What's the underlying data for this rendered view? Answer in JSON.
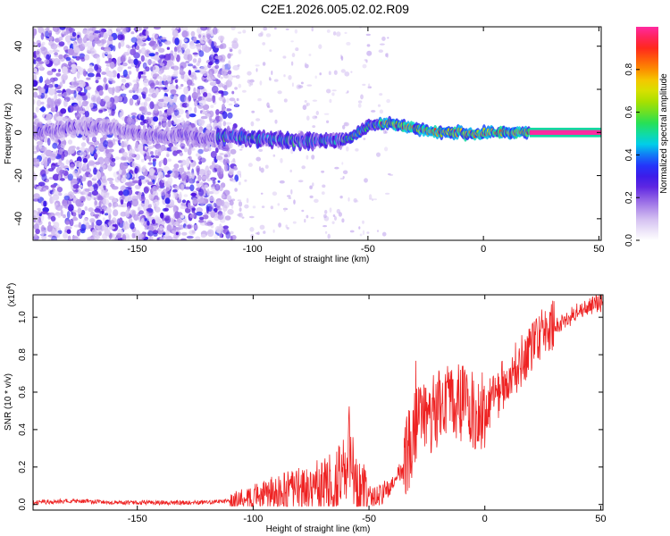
{
  "title": "C2E1.2026.005.02.02.R09",
  "chart_data": [
    {
      "type": "heatmap",
      "xlabel": "Height of straight line (km)",
      "ylabel": "Frequency (Hz)",
      "xlim": [
        -195,
        51
      ],
      "ylim": [
        -50,
        49
      ],
      "xticks": [
        -150,
        -100,
        -50,
        0,
        50
      ],
      "xtick_labels": [
        "-150",
        "-100",
        "-50",
        "0",
        "50"
      ],
      "yticks": [
        -40,
        -20,
        0,
        20,
        40
      ],
      "ytick_labels": [
        "-40",
        "-20",
        "0",
        "20",
        "40"
      ],
      "colorbar": {
        "label": "Normalized spectral amplitude",
        "range": [
          0,
          1
        ],
        "ticks": [
          0.0,
          0.2,
          0.4,
          0.6,
          0.8
        ],
        "tick_labels": [
          "0.0",
          "0.2",
          "0.4",
          "0.6",
          "0.8"
        ]
      },
      "ridge": {
        "x": [
          -195,
          -185,
          -175,
          -160,
          -150,
          -140,
          -130,
          -120,
          -110,
          -100,
          -90,
          -80,
          -70,
          -60,
          -55,
          -50,
          -45,
          -40,
          -35,
          -30,
          -25,
          -20,
          -15,
          -10,
          -5,
          0,
          5,
          10,
          20,
          30,
          40,
          51
        ],
        "freq": [
          0,
          1,
          3,
          2,
          -1,
          -2,
          -1,
          -3,
          -1,
          -3,
          -3,
          -4,
          -4,
          -3,
          -1,
          3,
          4,
          4,
          3,
          2,
          1,
          0,
          0,
          0,
          -1,
          0,
          0,
          0,
          0,
          0,
          0,
          0
        ]
      },
      "strong_band_start_km": 20
    },
    {
      "type": "line",
      "xlabel": "Height of straight line (km)",
      "ylabel": "SNR (10 * v/v)",
      "scale_label": "(x10",
      "scale_exponent": "4",
      "xlim": [
        -195,
        51
      ],
      "ylim": [
        -0.03,
        1.12
      ],
      "xticks": [
        -150,
        -100,
        -50,
        0,
        50
      ],
      "xtick_labels": [
        "-150",
        "-100",
        "-50",
        "0",
        "50"
      ],
      "yticks": [
        0.0,
        0.2,
        0.4,
        0.6,
        0.8,
        1.0
      ],
      "ytick_labels": [
        "0.0",
        "0.2",
        "0.4",
        "0.6",
        "0.8",
        "1.0"
      ],
      "series": [
        {
          "name": "SNR",
          "color": "#ee2222",
          "x": [
            -195,
            -180,
            -160,
            -140,
            -120,
            -110,
            -100,
            -90,
            -80,
            -70,
            -65,
            -60,
            -57,
            -55,
            -50,
            -45,
            -40,
            -35,
            -30,
            -28,
            -25,
            -20,
            -15,
            -10,
            -5,
            0,
            5,
            10,
            15,
            20,
            25,
            30,
            35,
            40,
            45,
            51
          ],
          "values": [
            0.01,
            0.02,
            0.01,
            0.01,
            0.01,
            0.02,
            0.04,
            0.06,
            0.07,
            0.09,
            0.12,
            0.2,
            0.15,
            0.06,
            0.04,
            0.05,
            0.1,
            0.2,
            0.4,
            0.52,
            0.45,
            0.5,
            0.55,
            0.55,
            0.5,
            0.52,
            0.58,
            0.68,
            0.75,
            0.84,
            0.92,
            0.96,
            0.98,
            1.03,
            1.06,
            1.08
          ]
        }
      ]
    }
  ],
  "colors": {
    "axis": "#000000",
    "snr_line": "#ee2222",
    "colormap": [
      "#ffffff",
      "#d9c8f2",
      "#9b6de6",
      "#4a0fe0",
      "#1d3cff",
      "#00d6e8",
      "#22e05a",
      "#9de000",
      "#f0e000",
      "#ff7a00",
      "#ff2020",
      "#ff2aa0"
    ]
  }
}
